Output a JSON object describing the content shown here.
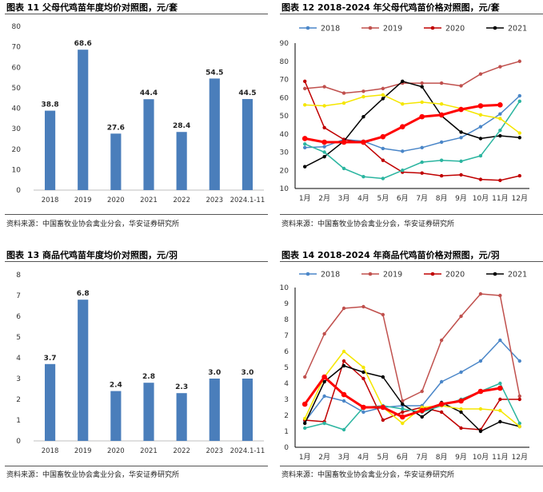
{
  "panels": [
    {
      "title": "图表 11 父母代鸡苗年度均价对照图，元/套",
      "source": "资料来源：中国畜牧业协会禽业分会，华安证券研究所"
    },
    {
      "title": "图表 12 2018-2024 年父母代鸡苗价格对照图，元/套",
      "source": "资料来源：中国畜牧业协会禽业分会，华安证券研究所"
    },
    {
      "title": "图表 13 商品代鸡苗年度均价对照图，元/羽",
      "source": "资料来源：中国畜牧业协会禽业分会，华安证券研究所"
    },
    {
      "title": "图表 14 2018-2024 年商品代鸡苗价格对照图，元/羽",
      "source": "资料来源：中国畜牧业协会禽业分会，华安证券研究所"
    }
  ],
  "chart_data": [
    {
      "type": "bar",
      "categories": [
        "2018",
        "2019",
        "2020",
        "2021",
        "2022",
        "2023",
        "2024.1-11"
      ],
      "values": [
        38.8,
        68.6,
        27.6,
        44.4,
        28.4,
        54.5,
        44.5
      ],
      "value_labels": [
        "38.8",
        "68.6",
        "27.6",
        "44.4",
        "28.4",
        "54.5",
        "44.5"
      ],
      "ylim": [
        0,
        80
      ],
      "yticks": [
        "0",
        "10",
        "20",
        "30",
        "40",
        "50",
        "60",
        "70",
        "80"
      ],
      "color": "#4a7ebb",
      "grid": false
    },
    {
      "type": "line",
      "categories": [
        "1月",
        "2月",
        "3月",
        "4月",
        "5月",
        "6月",
        "7月",
        "8月",
        "9月",
        "10月",
        "11月",
        "12月"
      ],
      "ylim": [
        10,
        90
      ],
      "yticks": [
        "10",
        "20",
        "30",
        "40",
        "50",
        "60",
        "70",
        "80",
        "90"
      ],
      "legend": "top",
      "grid": false,
      "series": [
        {
          "name": "2018",
          "color": "#4a86c8",
          "width": 1.5,
          "values": [
            32.5,
            33,
            37,
            36,
            32,
            30.5,
            32.5,
            35.5,
            38,
            44,
            51,
            61
          ]
        },
        {
          "name": "2019",
          "color": "#c0504d",
          "width": 1.5,
          "values": [
            65,
            66,
            62.5,
            63.5,
            65,
            68,
            68,
            68,
            66.5,
            73,
            77,
            80
          ]
        },
        {
          "name": "2020",
          "color": "#c00000",
          "width": 1.5,
          "values": [
            69,
            43.5,
            37,
            35,
            25.5,
            19,
            18.5,
            17,
            17.5,
            15,
            14.5,
            17
          ]
        },
        {
          "name": "2021",
          "color": "#000000",
          "width": 1.5,
          "values": [
            22,
            27.5,
            36,
            49.5,
            59.5,
            69,
            66,
            50,
            41,
            37.5,
            39,
            38
          ]
        },
        {
          "name": "",
          "color": "#2bb5a0",
          "width": 1.5,
          "values": [
            34.5,
            30,
            21,
            16.5,
            15.5,
            20,
            24.5,
            25.5,
            25,
            28,
            42,
            58
          ]
        },
        {
          "name": "",
          "color": "#f5e600",
          "width": 1.5,
          "values": [
            56,
            55.5,
            57,
            60.5,
            61.5,
            56.5,
            57.5,
            56.5,
            54,
            50.5,
            48.5,
            40.5
          ]
        },
        {
          "name": "",
          "color": "#ff0000",
          "width": 3,
          "values": [
            37.5,
            35.5,
            35.5,
            35.5,
            38.5,
            44,
            49.5,
            50.5,
            53.5,
            55.5,
            56,
            null
          ]
        }
      ]
    },
    {
      "type": "bar",
      "categories": [
        "2018",
        "2019",
        "2020",
        "2021",
        "2022",
        "2023",
        "2024.1-11"
      ],
      "values": [
        3.7,
        6.8,
        2.4,
        2.8,
        2.3,
        3.0,
        3.0
      ],
      "value_labels": [
        "3.7",
        "6.8",
        "2.4",
        "2.8",
        "2.3",
        "3.0",
        "3.0"
      ],
      "ylim": [
        0,
        8
      ],
      "yticks": [
        "0",
        "1",
        "2",
        "3",
        "4",
        "5",
        "6",
        "7",
        "8"
      ],
      "color": "#4a7ebb",
      "grid": false
    },
    {
      "type": "line",
      "categories": [
        "1月",
        "2月",
        "3月",
        "4月",
        "5月",
        "6月",
        "7月",
        "8月",
        "9月",
        "10月",
        "11月",
        "12月"
      ],
      "ylim": [
        0,
        10
      ],
      "yticks": [
        "0",
        "1",
        "2",
        "3",
        "4",
        "5",
        "6",
        "7",
        "8",
        "9",
        "10"
      ],
      "legend": "top",
      "grid": false,
      "series": [
        {
          "name": "2018",
          "color": "#4a86c8",
          "width": 1.5,
          "values": [
            1.6,
            3.2,
            2.9,
            2.2,
            2.5,
            2.6,
            2.6,
            4.1,
            4.7,
            5.4,
            6.7,
            5.4
          ]
        },
        {
          "name": "2019",
          "color": "#c0504d",
          "width": 1.5,
          "values": [
            4.4,
            7.1,
            8.7,
            8.8,
            8.3,
            2.9,
            3.5,
            6.7,
            8.2,
            9.6,
            9.5,
            3.2
          ]
        },
        {
          "name": "2020",
          "color": "#c00000",
          "width": 1.5,
          "values": [
            1.7,
            1.6,
            5.4,
            4.3,
            1.7,
            2.2,
            2.5,
            2.2,
            1.2,
            1.1,
            3.0,
            3.0
          ]
        },
        {
          "name": "2021",
          "color": "#000000",
          "width": 1.5,
          "values": [
            1.5,
            4.1,
            5.1,
            4.7,
            4.4,
            2.7,
            1.9,
            2.8,
            2.2,
            1.0,
            1.6,
            1.3
          ]
        },
        {
          "name": "",
          "color": "#2bb5a0",
          "width": 1.5,
          "values": [
            1.2,
            1.5,
            1.1,
            2.5,
            2.6,
            2.4,
            2.2,
            2.6,
            3.0,
            3.5,
            4.0,
            1.5
          ]
        },
        {
          "name": "",
          "color": "#f5e600",
          "width": 1.5,
          "values": [
            1.8,
            4.4,
            6.0,
            5.0,
            2.5,
            1.5,
            2.5,
            2.6,
            2.4,
            2.4,
            2.3,
            1.3
          ]
        },
        {
          "name": "",
          "color": "#ff0000",
          "width": 3,
          "values": [
            2.7,
            4.4,
            3.3,
            2.5,
            2.5,
            1.9,
            2.3,
            2.7,
            2.9,
            3.5,
            3.7,
            null
          ]
        }
      ]
    }
  ]
}
